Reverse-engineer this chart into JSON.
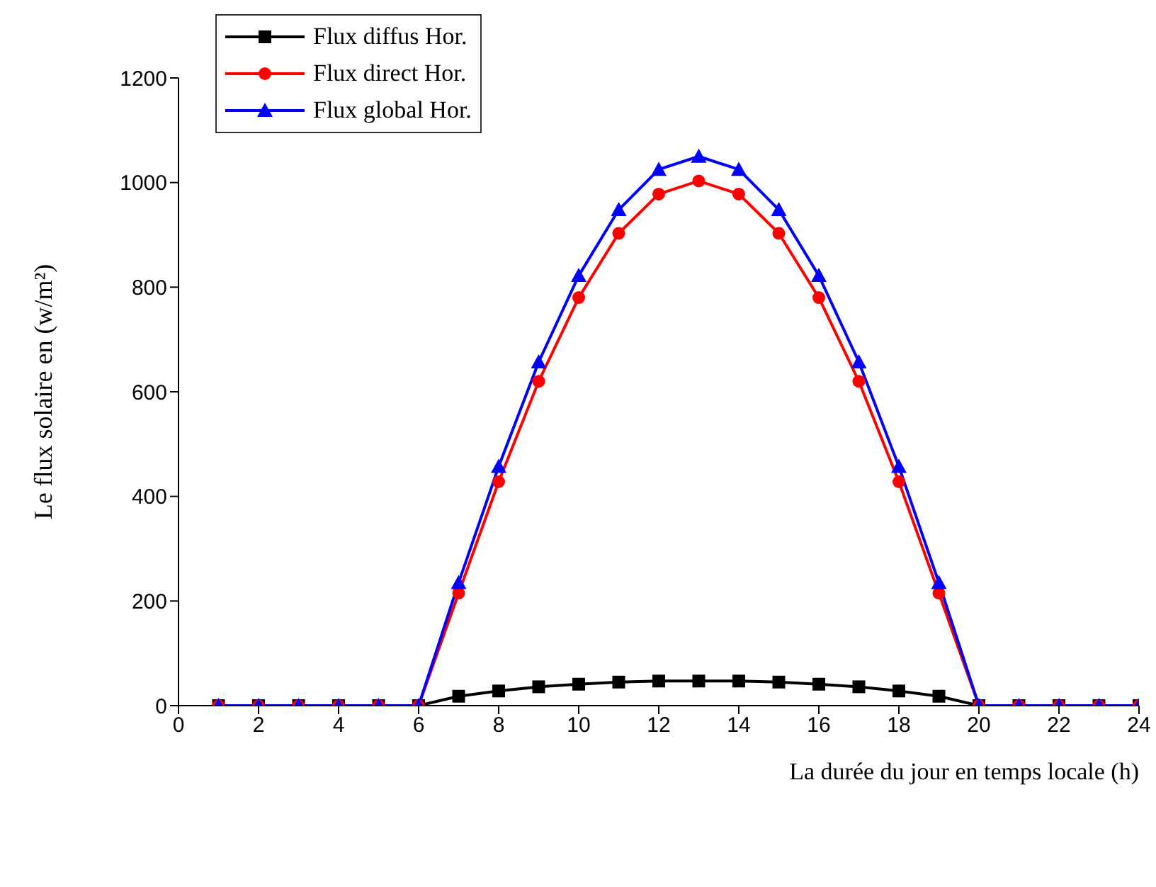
{
  "chart_data": {
    "type": "line",
    "xlabel": "La durée du jour en temps locale (h)",
    "ylabel": "Le flux solaire en (w/m²)",
    "x": [
      1,
      2,
      3,
      4,
      5,
      6,
      7,
      8,
      9,
      10,
      11,
      12,
      13,
      14,
      15,
      16,
      17,
      18,
      19,
      20,
      21,
      22,
      23,
      24
    ],
    "series": [
      {
        "name": "Flux diffus Hor.",
        "color": "#000000",
        "marker": "square",
        "values": [
          0,
          0,
          0,
          0,
          0,
          0,
          18,
          28,
          36,
          41,
          45,
          47,
          47,
          47,
          45,
          41,
          36,
          28,
          18,
          0,
          0,
          0,
          0,
          0
        ]
      },
      {
        "name": "Flux direct Hor.",
        "color": "#ff0000",
        "marker": "circle",
        "values": [
          0,
          0,
          0,
          0,
          0,
          0,
          215,
          428,
          620,
          780,
          903,
          978,
          1003,
          978,
          903,
          780,
          620,
          428,
          215,
          0,
          0,
          0,
          0,
          0
        ]
      },
      {
        "name": "Flux global Hor.",
        "color": "#0000ff",
        "marker": "triangle",
        "values": [
          0,
          0,
          0,
          0,
          0,
          0,
          235,
          457,
          657,
          822,
          948,
          1025,
          1050,
          1025,
          948,
          822,
          657,
          457,
          235,
          0,
          0,
          0,
          0,
          0
        ]
      }
    ],
    "xlim": [
      0,
      24
    ],
    "xticks": [
      0,
      2,
      4,
      6,
      8,
      10,
      12,
      14,
      16,
      18,
      20,
      22,
      24
    ],
    "ylim": [
      0,
      1200
    ],
    "yticks": [
      0,
      200,
      400,
      600,
      800,
      1000,
      1200
    ],
    "grid": false,
    "legend": "top left",
    "line_style": "solid"
  }
}
